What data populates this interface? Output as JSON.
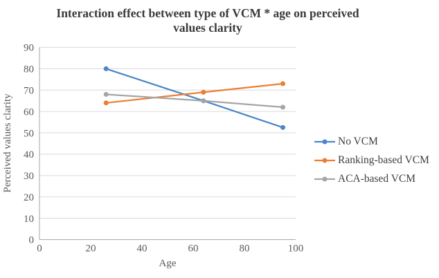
{
  "figure": {
    "title_lines": [
      "Interaction effect between type of VCM * age on perceived",
      "values clarity"
    ]
  },
  "chart_data": {
    "type": "line",
    "title": "Interaction effect between type of VCM * age on perceived values clarity",
    "xlabel": "Age",
    "ylabel": "Perceived values clarity",
    "xlim": [
      0,
      100
    ],
    "ylim": [
      0,
      90
    ],
    "xticks": [
      0,
      20,
      40,
      60,
      80,
      100
    ],
    "yticks": [
      0,
      10,
      20,
      30,
      40,
      50,
      60,
      70,
      80,
      90
    ],
    "grid": "horizontal-only",
    "legend_position": "right",
    "markers": "circle",
    "x": [
      26,
      64,
      95
    ],
    "series": [
      {
        "name": "No VCM",
        "color": "#4a86c8",
        "values": [
          80,
          65,
          52.5
        ]
      },
      {
        "name": "Ranking-based VCM",
        "color": "#ed7d31",
        "values": [
          64,
          69,
          73
        ]
      },
      {
        "name": "ACA-based VCM",
        "color": "#a5a5a5",
        "values": [
          68,
          65,
          62
        ]
      }
    ],
    "colors": {
      "gridline": "#d9d9d9",
      "axis_line": "#a6a6a6",
      "tick_text": "#595959",
      "title_text": "#3a3a3a"
    }
  }
}
